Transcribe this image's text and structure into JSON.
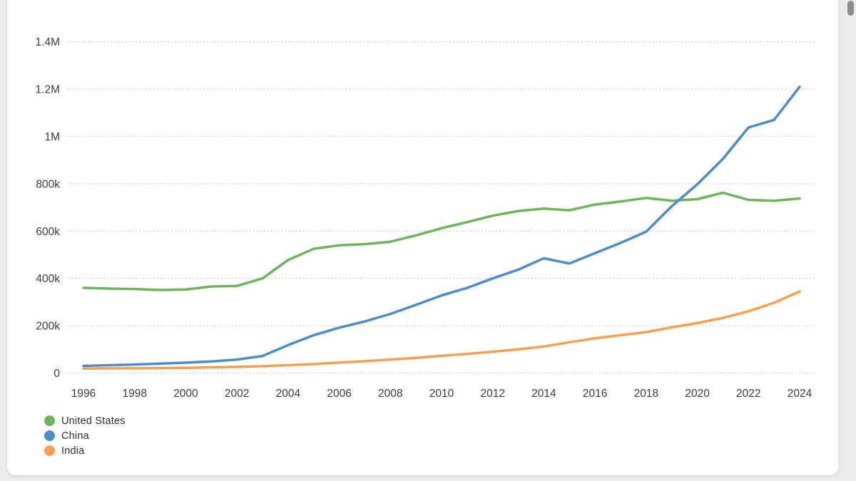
{
  "page": {
    "background_color": "#ebebeb",
    "card_color": "#ffffff",
    "scrollbar_color": "#8d8d8d"
  },
  "chart_data": {
    "type": "line",
    "title": "",
    "grid": "horizontal-dotted",
    "grid_color": "#c6c6c6",
    "axis_text_color": "#3d3d3d",
    "legend_position": "bottom-left",
    "ylim": [
      0,
      1400000
    ],
    "x": [
      1996,
      1997,
      1998,
      1999,
      2000,
      2001,
      2002,
      2003,
      2004,
      2005,
      2006,
      2007,
      2008,
      2009,
      2010,
      2011,
      2012,
      2013,
      2014,
      2015,
      2016,
      2017,
      2018,
      2019,
      2020,
      2021,
      2022,
      2023,
      2024
    ],
    "x_tick_labels": [
      "1996",
      "1998",
      "2000",
      "2002",
      "2004",
      "2006",
      "2008",
      "2010",
      "2012",
      "2014",
      "2016",
      "2018",
      "2020",
      "2022",
      "2024"
    ],
    "y_ticks": [
      {
        "value": 0,
        "label": "0"
      },
      {
        "value": 200000,
        "label": "200k"
      },
      {
        "value": 400000,
        "label": "400k"
      },
      {
        "value": 600000,
        "label": "600k"
      },
      {
        "value": 800000,
        "label": "800k"
      },
      {
        "value": 1000000,
        "label": "1M"
      },
      {
        "value": 1200000,
        "label": "1.2M"
      },
      {
        "value": 1400000,
        "label": "1.4M"
      }
    ],
    "series": [
      {
        "name": "United States",
        "color": "#6eb45a",
        "values": [
          360000,
          357000,
          355000,
          351000,
          353000,
          366000,
          368000,
          400000,
          478000,
          525000,
          540000,
          545000,
          555000,
          582000,
          612000,
          638000,
          665000,
          685000,
          695000,
          688000,
          712000,
          725000,
          740000,
          728000,
          735000,
          762000,
          732000,
          728000,
          738000
        ]
      },
      {
        "name": "China",
        "color": "#4b8ccd",
        "values": [
          30000,
          33000,
          36000,
          40000,
          44000,
          49000,
          57000,
          72000,
          118000,
          160000,
          192000,
          218000,
          250000,
          288000,
          328000,
          360000,
          400000,
          437000,
          485000,
          463000,
          507000,
          550000,
          598000,
          705000,
          798000,
          905000,
          1038000,
          1070000,
          1210000
        ]
      },
      {
        "name": "India",
        "color": "#f6a04d",
        "values": [
          19000,
          20000,
          20000,
          21000,
          22000,
          24000,
          26000,
          29000,
          33000,
          38000,
          44000,
          50000,
          57000,
          64000,
          73000,
          81000,
          90000,
          100000,
          112000,
          130000,
          147000,
          160000,
          173000,
          193000,
          211000,
          233000,
          261000,
          297000,
          345000
        ]
      }
    ]
  },
  "legend": {
    "items": [
      {
        "label": "United States",
        "color": "#6eb45a"
      },
      {
        "label": "China",
        "color": "#4b8ccd"
      },
      {
        "label": "India",
        "color": "#f6a04d"
      }
    ]
  }
}
